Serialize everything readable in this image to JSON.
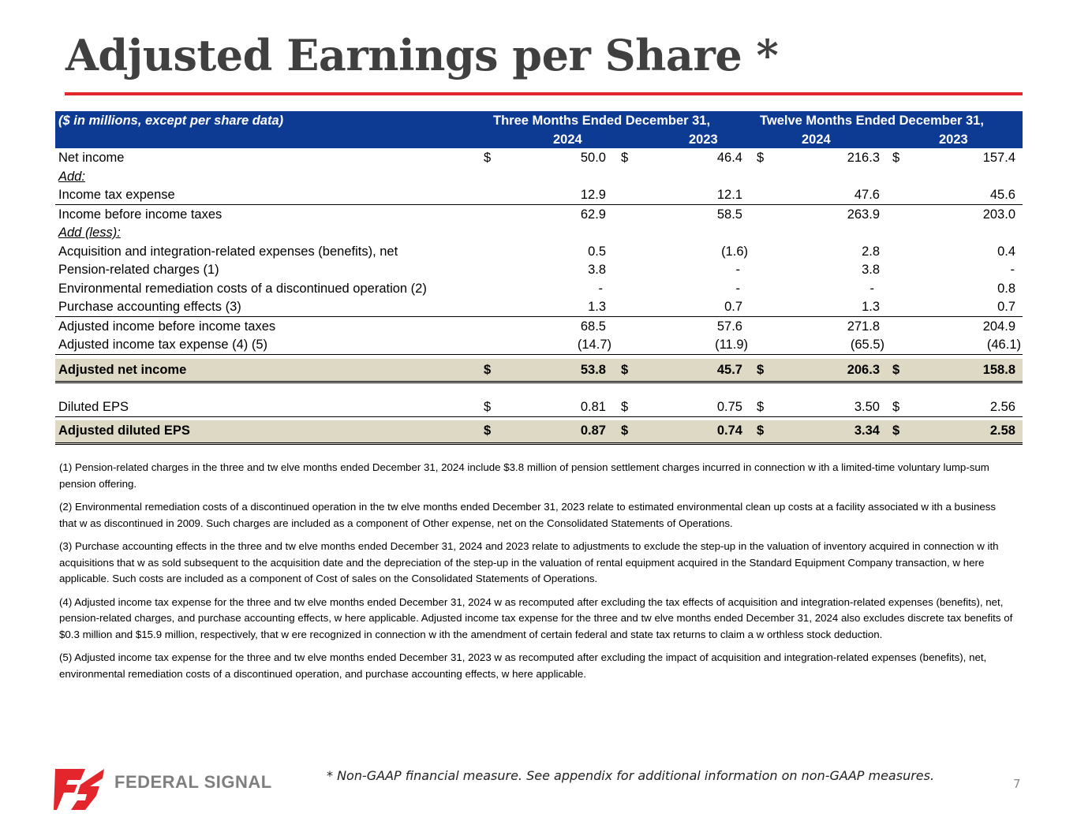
{
  "title": "Adjusted Earnings per Share *",
  "header": {
    "units": "($ in millions, except per share data)",
    "group1": "Three Months Ended December 31,",
    "group2": "Twelve Months Ended December 31,",
    "years": [
      "2024",
      "2023",
      "2024",
      "2023"
    ]
  },
  "rows": {
    "net_income": {
      "label": "Net income",
      "dollar": "$",
      "values": [
        "50.0",
        "46.4",
        "216.3",
        "157.4"
      ]
    },
    "add": {
      "label": "Add:"
    },
    "income_tax_expense": {
      "label": "Income tax expense",
      "values": [
        "12.9",
        "12.1",
        "47.6",
        "45.6"
      ]
    },
    "income_before_taxes": {
      "label": "Income before income taxes",
      "values": [
        "62.9",
        "58.5",
        "263.9",
        "203.0"
      ]
    },
    "add_less": {
      "label": "Add (less):"
    },
    "acquisition": {
      "label": "Acquisition and integration-related expenses (benefits), net",
      "values": [
        "0.5",
        "(1.6)",
        "2.8",
        "0.4"
      ]
    },
    "pension": {
      "label": "Pension-related charges (1)",
      "values": [
        "3.8",
        "-",
        "3.8",
        "-"
      ]
    },
    "environmental": {
      "label": "Environmental remediation costs of a discontinued operation (2)",
      "values": [
        "-",
        "-",
        "-",
        "0.8"
      ]
    },
    "purchase_accounting": {
      "label": "Purchase accounting effects (3)",
      "values": [
        "1.3",
        "0.7",
        "1.3",
        "0.7"
      ]
    },
    "adj_income_before_taxes": {
      "label": "Adjusted income before income taxes",
      "values": [
        "68.5",
        "57.6",
        "271.8",
        "204.9"
      ]
    },
    "adj_tax_expense": {
      "label": "Adjusted income tax expense (4) (5)",
      "values": [
        "(14.7)",
        "(11.9)",
        "(65.5)",
        "(46.1)"
      ]
    },
    "adj_net_income": {
      "label": "Adjusted net income",
      "dollar": "$",
      "values": [
        "53.8",
        "45.7",
        "206.3",
        "158.8"
      ]
    },
    "diluted_eps": {
      "label": "Diluted EPS",
      "dollar": "$",
      "values": [
        "0.81",
        "0.75",
        "3.50",
        "2.56"
      ]
    },
    "adj_diluted_eps": {
      "label": "Adjusted diluted EPS",
      "dollar": "$",
      "values": [
        "0.87",
        "0.74",
        "3.34",
        "2.58"
      ]
    }
  },
  "notes": [
    "(1) Pension-related charges in the three and tw elve months ended December 31, 2024 include $3.8 million of pension settlement charges incurred in connection w ith a limited-time voluntary lump-sum pension offering.",
    "(2) Environmental remediation costs of a discontinued operation in the tw elve months ended December 31, 2023 relate to estimated environmental clean up costs at a facility associated w ith a business that w as discontinued in 2009. Such charges are included as a component of Other expense, net on the Consolidated Statements of Operations.",
    "(3) Purchase accounting effects in the three and tw elve months ended December 31, 2024 and 2023 relate to adjustments to exclude the step-up in the valuation of inventory acquired in connection w ith acquisitions that w as sold subsequent to the acquisition date and the depreciation of the step-up in the valuation of rental equipment acquired in the Standard Equipment Company transaction, w here applicable. Such costs are included as a component of Cost of sales on the Consolidated Statements of Operations.",
    "(4) Adjusted income tax expense for the three and tw elve months ended December 31, 2024 w as recomputed after excluding the tax effects of acquisition and integration-related expenses (benefits), net, pension-related charges, and purchase accounting effects, w here applicable. Adjusted income tax expense for the three and tw elve months ended December 31, 2024 also excludes discrete tax benefits of $0.3 million and $15.9 million, respectively, that w ere recognized in connection w ith the amendment of certain federal and state tax returns to claim a w orthless stock deduction.",
    "(5) Adjusted income tax expense for the three and tw elve months ended December 31, 2023 w as recomputed after excluding the impact of acquisition and integration-related expenses (benefits), net, environmental remediation costs of a discontinued operation, and purchase accounting effects, w here applicable."
  ],
  "footer": {
    "brand": "FEDERAL SIGNAL",
    "disclaimer": "* Non-GAAP financial measure. See appendix for additional information on non-GAAP measures.",
    "page_number": "7"
  },
  "colors": {
    "header_bg": "#0d3b94",
    "accent_red": "#e3262b",
    "highlight_row": "#ddd9c4",
    "logo_red": "#e3262b",
    "logo_text": "#7f7f7f"
  }
}
